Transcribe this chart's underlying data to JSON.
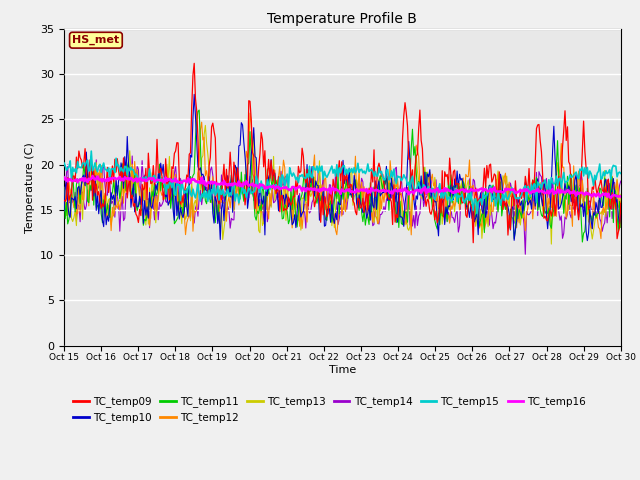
{
  "title": "Temperature Profile B",
  "xlabel": "Time",
  "ylabel": "Temperature (C)",
  "ylim": [
    0,
    35
  ],
  "xlim": [
    0,
    15
  ],
  "plot_bg": "#e8e8e8",
  "fig_bg": "#f0f0f0",
  "annotation_text": "HS_met",
  "annotation_color": "#8B0000",
  "annotation_bg": "#FFFF99",
  "xtick_labels": [
    "Oct 15",
    "Oct 16",
    "Oct 17",
    "Oct 18",
    "Oct 19",
    "Oct 20",
    "Oct 21",
    "Oct 22",
    "Oct 23",
    "Oct 24",
    "Oct 25",
    "Oct 26",
    "Oct 27",
    "Oct 28",
    "Oct 29",
    "Oct 30"
  ],
  "series_colors": {
    "TC_temp09": "#ff0000",
    "TC_temp10": "#0000cc",
    "TC_temp11": "#00cc00",
    "TC_temp12": "#ff8800",
    "TC_temp13": "#cccc00",
    "TC_temp14": "#9900cc",
    "TC_temp15": "#00cccc",
    "TC_temp16": "#ff00ff"
  },
  "legend_order": [
    "TC_temp09",
    "TC_temp10",
    "TC_temp11",
    "TC_temp12",
    "TC_temp13",
    "TC_temp14",
    "TC_temp15",
    "TC_temp16"
  ]
}
